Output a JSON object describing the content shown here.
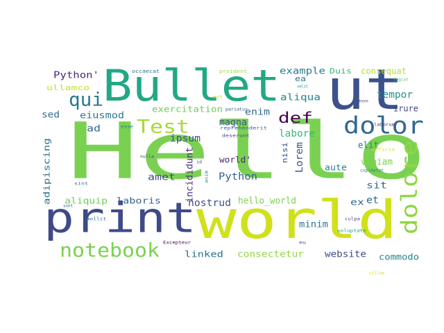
{
  "words": [
    {
      "text": "Hello",
      "color": "#7ad151"
    },
    {
      "text": "world",
      "color": "#d0e11c"
    },
    {
      "text": "ut",
      "color": "#3b528b"
    },
    {
      "text": "Bullet",
      "color": "#22a884"
    },
    {
      "text": "print",
      "color": "#3e4a89"
    },
    {
      "text": "dolore",
      "color": "#8fd744"
    },
    {
      "text": "dolor",
      "color": "#31688e"
    },
    {
      "text": "notebook",
      "color": "#7ad151"
    },
    {
      "text": "Test",
      "color": "#a5db36"
    },
    {
      "text": "qui",
      "color": "#2a788e"
    },
    {
      "text": "def",
      "color": "#440154"
    },
    {
      "text": "Python'",
      "color": "#482878"
    },
    {
      "text": "ullamco",
      "color": "#c2df23"
    },
    {
      "text": "occaecat",
      "color": "#2c718e"
    },
    {
      "text": "proident",
      "color": "#a0da39"
    },
    {
      "text": "example",
      "color": "#2a788e"
    },
    {
      "text": "Duis",
      "color": "#35b779"
    },
    {
      "text": "consequat",
      "color": "#b5de2b"
    },
    {
      "text": "ea",
      "color": "#2e6e8e"
    },
    {
      "text": "velit",
      "color": "#1f948c"
    },
    {
      "text": "fugiat",
      "color": "#5ec962"
    },
    {
      "text": "aliqua",
      "color": "#26828e"
    },
    {
      "text": "tempor",
      "color": "#21918c"
    },
    {
      "text": "est",
      "color": "#bddf26"
    },
    {
      "text": "non",
      "color": "#3b528b"
    },
    {
      "text": "sed",
      "color": "#2d708e"
    },
    {
      "text": "eiusmod",
      "color": "#2a788e"
    },
    {
      "text": "exercitation",
      "color": "#6ece58"
    },
    {
      "text": "pariatur",
      "color": "#365d8d"
    },
    {
      "text": "enim",
      "color": "#31688e"
    },
    {
      "text": "irure",
      "color": "#404688"
    },
    {
      "text": "magna",
      "color": "#38598c"
    },
    {
      "text": "esse",
      "color": "#29798e"
    },
    {
      "text": "reprehenderit",
      "color": "#33638d"
    },
    {
      "text": "laborum",
      "color": "#46327e"
    },
    {
      "text": "ad",
      "color": "#31688e"
    },
    {
      "text": "labore",
      "color": "#35b779"
    },
    {
      "text": "Lorem",
      "color": "#3b528b"
    },
    {
      "text": "deserunt",
      "color": "#3e4a89"
    },
    {
      "text": "adipiscing",
      "color": "#2c718e"
    },
    {
      "text": "ipsum",
      "color": "#3b528b"
    },
    {
      "text": "elit",
      "color": "#277f8e"
    },
    {
      "text": "officia",
      "color": "#d8e219"
    },
    {
      "text": "nulla",
      "color": "#404688"
    },
    {
      "text": "id",
      "color": "#3e4a89"
    },
    {
      "text": "incididunt",
      "color": "#46337e"
    },
    {
      "text": "nisi",
      "color": "#3b528b"
    },
    {
      "text": "veniam",
      "color": "#7ad151"
    },
    {
      "text": "anim",
      "color": "#277f8e"
    },
    {
      "text": "cupidatat",
      "color": "#2a788e"
    },
    {
      "text": "world'",
      "color": "#482878"
    },
    {
      "text": "amet",
      "color": "#3e4a89"
    },
    {
      "text": "Python",
      "color": "#365d8d"
    },
    {
      "text": "aute",
      "color": "#26828e"
    },
    {
      "text": "sit",
      "color": "#31688e"
    },
    {
      "text": "sint",
      "color": "#2c718e"
    },
    {
      "text": "aliquip",
      "color": "#6ece58"
    },
    {
      "text": "laboris",
      "color": "#33638d"
    },
    {
      "text": "hello_world",
      "color": "#7ad151"
    },
    {
      "text": "et",
      "color": "#31688e"
    },
    {
      "text": "ex",
      "color": "#31688e"
    },
    {
      "text": "sunt",
      "color": "#31688e"
    },
    {
      "text": "mollit",
      "color": "#2c718e"
    },
    {
      "text": "nostrud",
      "color": "#3b528b"
    },
    {
      "text": "minim",
      "color": "#2a788e"
    },
    {
      "text": "culpa",
      "color": "#3e4a89"
    },
    {
      "text": "voluptate",
      "color": "#1f948c"
    },
    {
      "text": "Excepteur",
      "color": "#440154"
    },
    {
      "text": "eu",
      "color": "#3b528b"
    },
    {
      "text": "linked",
      "color": "#2d708e"
    },
    {
      "text": "consectetur",
      "color": "#8fd744"
    },
    {
      "text": "website",
      "color": "#3e4a89"
    },
    {
      "text": "commodo",
      "color": "#26828e"
    },
    {
      "text": "cillum",
      "color": "#d8e219"
    }
  ]
}
